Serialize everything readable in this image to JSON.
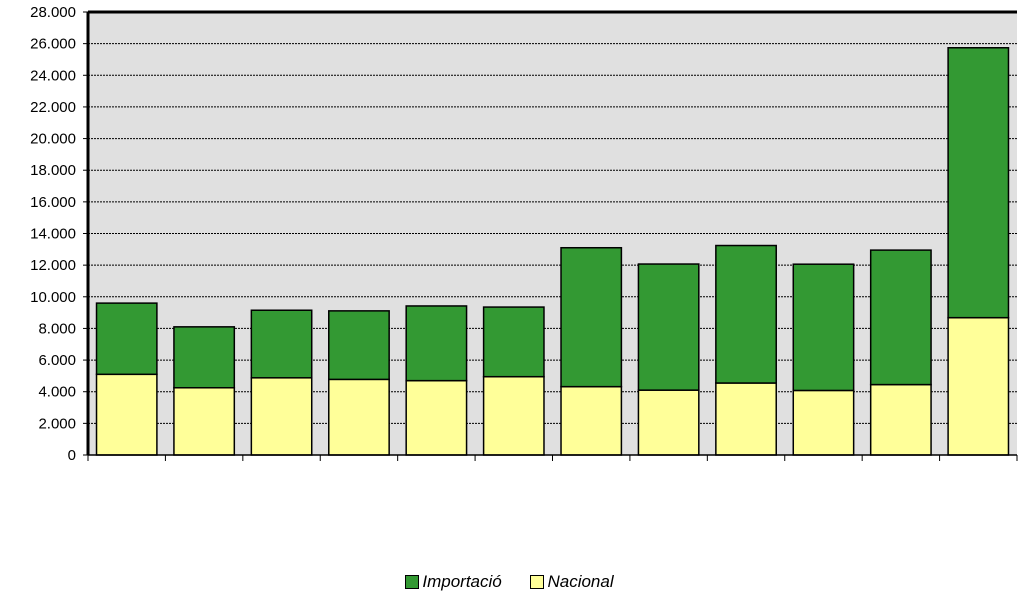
{
  "chart_data": {
    "type": "bar",
    "stacked": true,
    "categories": [
      "",
      "",
      "",
      "",
      "",
      "",
      "",
      "",
      "",
      "",
      "",
      ""
    ],
    "series": [
      {
        "name": "Nacional",
        "color": "#ffff99",
        "values": [
          5100,
          4250,
          4880,
          4780,
          4700,
          4950,
          4320,
          4100,
          4550,
          4080,
          4450,
          8680
        ]
      },
      {
        "name": "Importació",
        "color": "#339933",
        "values": [
          4500,
          3850,
          4270,
          4330,
          4720,
          4400,
          8780,
          7970,
          8690,
          7980,
          8500,
          17060
        ]
      }
    ],
    "yticks": [
      "0",
      "2.000",
      "4.000",
      "6.000",
      "8.000",
      "10.000",
      "12.000",
      "14.000",
      "16.000",
      "18.000",
      "20.000",
      "22.000",
      "24.000",
      "26.000",
      "28.000"
    ],
    "ylim": [
      0,
      28000
    ],
    "ystep": 2000,
    "grid": true,
    "legend_position": "bottom",
    "plot_background": "#e0e0e0"
  },
  "legend": {
    "items": [
      {
        "label": "Importació",
        "color": "#339933"
      },
      {
        "label": "Nacional",
        "color": "#ffff99"
      }
    ]
  }
}
